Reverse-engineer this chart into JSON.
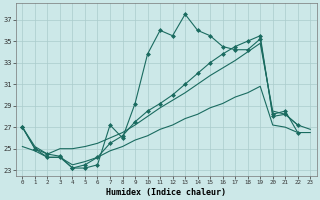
{
  "xlabel": "Humidex (Indice chaleur)",
  "bg_color": "#cce8e8",
  "grid_color": "#aacccc",
  "line_color": "#1a6b60",
  "xlim": [
    -0.5,
    23.5
  ],
  "ylim": [
    22.5,
    38.5
  ],
  "xticks": [
    0,
    1,
    2,
    3,
    4,
    5,
    6,
    7,
    8,
    9,
    10,
    11,
    12,
    13,
    14,
    15,
    16,
    17,
    18,
    19,
    20,
    21,
    22,
    23
  ],
  "yticks": [
    23,
    25,
    27,
    29,
    31,
    33,
    35,
    37
  ],
  "s1": [
    27.0,
    25.0,
    24.5,
    24.3,
    23.2,
    23.2,
    23.5,
    27.2,
    26.0,
    29.2,
    33.8,
    36.0,
    35.5,
    37.5,
    36.0,
    35.5,
    34.5,
    34.2,
    34.2,
    35.2,
    28.2,
    28.5,
    26.5,
    null
  ],
  "s2": [
    27.0,
    25.0,
    24.2,
    24.2,
    23.2,
    23.5,
    24.2,
    25.5,
    26.2,
    27.5,
    28.5,
    29.2,
    30.0,
    31.0,
    32.0,
    33.0,
    33.8,
    34.5,
    35.0,
    35.5,
    28.0,
    28.2,
    27.2,
    null
  ],
  "s3": [
    27.0,
    25.2,
    24.5,
    25.0,
    25.0,
    25.2,
    25.5,
    26.0,
    26.5,
    27.2,
    28.0,
    28.8,
    29.5,
    30.2,
    31.0,
    31.8,
    32.5,
    33.2,
    34.0,
    34.8,
    28.5,
    28.2,
    27.2,
    26.8
  ],
  "s4": [
    25.2,
    24.8,
    24.2,
    24.2,
    23.5,
    23.8,
    24.2,
    24.8,
    25.2,
    25.8,
    26.2,
    26.8,
    27.2,
    27.8,
    28.2,
    28.8,
    29.2,
    29.8,
    30.2,
    30.8,
    27.2,
    27.0,
    26.5,
    26.5
  ]
}
